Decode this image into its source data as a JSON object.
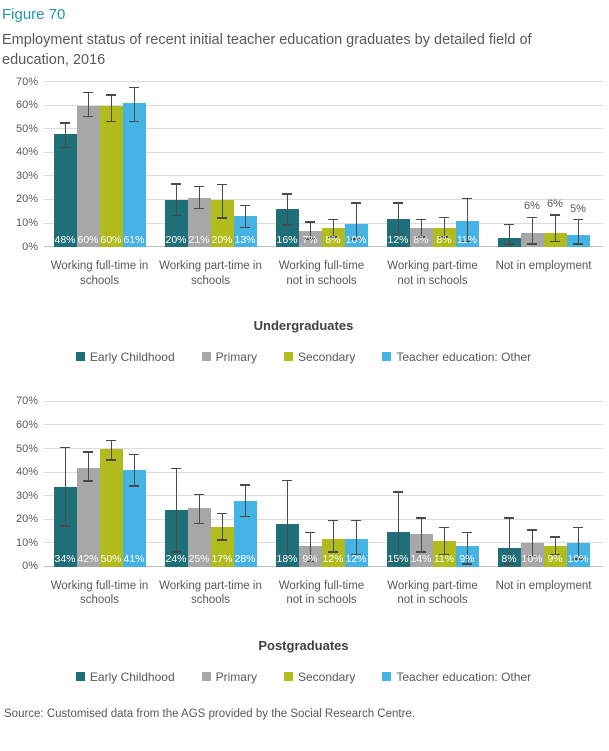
{
  "figure_label": "Figure 70",
  "title": "Employment status of recent initial teacher education graduates by detailed field of education, 2016",
  "source": "Source: Customised data from the AGS provided by the Social Research Centre.",
  "accent_color": "#2596A4",
  "text_color": "#58595B",
  "gridline_color": "#DBDBDB",
  "error_bar_color": "#4A4A4A",
  "series_colors": [
    "#1F6F78",
    "#A7A7A7",
    "#B2BB1C",
    "#45B4E5"
  ],
  "legend": [
    "Early Childhood",
    "Primary",
    "Secondary",
    "Teacher education: Other"
  ],
  "chart_data": [
    {
      "type": "bar",
      "title": "Undergraduates",
      "categories": [
        "Working full-time in\nschools",
        "Working part-time in\nschools",
        "Working full-time\nnot in schools",
        "Working part-time\nnot in schools",
        "Not in employment"
      ],
      "xlabel": "",
      "ylabel": "",
      "ylim": [
        0,
        70
      ],
      "ytick_step": 10,
      "ytick_labels": [
        "0%",
        "10%",
        "20%",
        "30%",
        "40%",
        "50%",
        "60%",
        "70%"
      ],
      "grid": true,
      "legend_position": "bottom",
      "labels_above_groups": [
        4
      ],
      "series": [
        {
          "name": "Early Childhood",
          "values": [
            48,
            20,
            16,
            12,
            4
          ],
          "labels": [
            "48%",
            "20%",
            "16%",
            "12%",
            ""
          ],
          "error_low": [
            42,
            13,
            9,
            5,
            1
          ],
          "error_high": [
            53,
            27,
            23,
            19,
            10
          ]
        },
        {
          "name": "Primary",
          "values": [
            60,
            21,
            7,
            8,
            6
          ],
          "labels": [
            "60%",
            "21%",
            "7%",
            "8%",
            "6%"
          ],
          "error_low": [
            55,
            16,
            3,
            4,
            1
          ],
          "error_high": [
            66,
            26,
            11,
            12,
            13
          ]
        },
        {
          "name": "Secondary",
          "values": [
            60,
            20,
            8,
            8,
            6
          ],
          "labels": [
            "60%",
            "20%",
            "8%",
            "8%",
            "6%"
          ],
          "error_low": [
            53,
            12,
            4,
            4,
            2
          ],
          "error_high": [
            65,
            27,
            12,
            13,
            14
          ]
        },
        {
          "name": "Teacher education: Other",
          "values": [
            61,
            13,
            10,
            11,
            5
          ],
          "labels": [
            "61%",
            "13%",
            "10%",
            "11%",
            "5%"
          ],
          "error_low": [
            53,
            8,
            3,
            2,
            1
          ],
          "error_high": [
            68,
            18,
            19,
            21,
            12
          ]
        }
      ]
    },
    {
      "type": "bar",
      "title": "Postgraduates",
      "categories": [
        "Working full-time in\nschools",
        "Working part-time in\nschools",
        "Working full-time\nnot in schools",
        "Working part-time\nnot in schools",
        "Not in employment"
      ],
      "xlabel": "",
      "ylabel": "",
      "ylim": [
        0,
        70
      ],
      "ytick_step": 10,
      "ytick_labels": [
        "0%",
        "10%",
        "20%",
        "30%",
        "40%",
        "50%",
        "60%",
        "70%"
      ],
      "grid": true,
      "legend_position": "bottom",
      "labels_above_groups": [],
      "series": [
        {
          "name": "Early Childhood",
          "values": [
            34,
            24,
            18,
            15,
            8
          ],
          "labels": [
            "34%",
            "24%",
            "18%",
            "15%",
            "8%"
          ],
          "error_low": [
            17,
            6,
            4,
            2,
            1
          ],
          "error_high": [
            51,
            42,
            37,
            32,
            21
          ]
        },
        {
          "name": "Primary",
          "values": [
            42,
            25,
            9,
            14,
            10
          ],
          "labels": [
            "42%",
            "25%",
            "9%",
            "14%",
            "10%"
          ],
          "error_low": [
            36,
            18,
            2,
            6,
            4
          ],
          "error_high": [
            49,
            31,
            15,
            21,
            16
          ]
        },
        {
          "name": "Secondary",
          "values": [
            50,
            17,
            12,
            11,
            9
          ],
          "labels": [
            "50%",
            "17%",
            "12%",
            "11%",
            "9%"
          ],
          "error_low": [
            45,
            11,
            6,
            5,
            5
          ],
          "error_high": [
            54,
            23,
            20,
            17,
            13
          ]
        },
        {
          "name": "Teacher education: Other",
          "values": [
            41,
            28,
            12,
            9,
            10
          ],
          "labels": [
            "41%",
            "28%",
            "12%",
            "9%",
            "10%"
          ],
          "error_low": [
            34,
            21,
            5,
            1,
            3
          ],
          "error_high": [
            48,
            35,
            20,
            15,
            17
          ]
        }
      ]
    }
  ]
}
